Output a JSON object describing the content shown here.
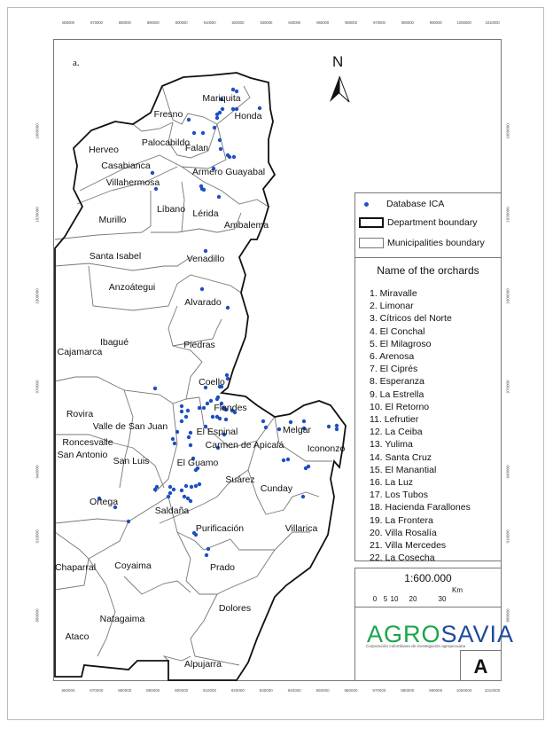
{
  "panel_label": "a.",
  "north_arrow": {
    "letter": "N"
  },
  "axes": {
    "easting_ticks": [
      "860000",
      "870000",
      "880000",
      "890000",
      "900000",
      "910000",
      "920000",
      "930000",
      "940000",
      "950000",
      "960000",
      "970000",
      "980000",
      "990000",
      "1000000",
      "1010000"
    ],
    "northing_ticks": [
      "1060000",
      "1030000",
      "1000000",
      "970000",
      "940000",
      "910000",
      "880000"
    ]
  },
  "legend": {
    "items": [
      {
        "label": "Database ICA",
        "symbol": "point",
        "color": "#1f4fc4"
      },
      {
        "label": "Department boundary",
        "symbol": "thick-box"
      },
      {
        "label": "Municipalities boundary",
        "symbol": "thin-box"
      }
    ]
  },
  "orchards": {
    "title": "Name of the orchards",
    "items": [
      "1. Miravalle",
      "2. Limonar",
      "3. Cítricos del Norte",
      "4. El Conchal",
      "5. El Milagroso",
      "6. Arenosa",
      "7. El Ciprés",
      "8. Esperanza",
      "9. La Estrella",
      "10. El Retorno",
      "11. Lefrutier",
      "12. La Ceiba",
      "13. Yulima",
      "14. Santa Cruz",
      "15. El Manantial",
      "16. La Luz",
      "17. Los Tubos",
      "18. Hacienda Farallones",
      "19. La Frontera",
      "20. Villa Rosalía",
      "21. Villa Mercedes",
      "22. La Cosecha"
    ]
  },
  "scale": {
    "ratio": "1:600.000",
    "unit": "Km",
    "labels": [
      "0",
      "5",
      "10",
      "20",
      "30"
    ]
  },
  "logo": {
    "part1": "AGRO",
    "part2": "SAVIA",
    "tagline": "Corporación colombiana de investigación agropecuaria"
  },
  "panel_letter": "A",
  "municipalities": [
    "Mariquita",
    "Fresno",
    "Honda",
    "Palocabildo",
    "Falan",
    "Herveo",
    "Casabianca",
    "Armero Guayabal",
    "Villahermosa",
    "Líbano",
    "Lérida",
    "Murillo",
    "Ambalema",
    "Santa Isabel",
    "Venadillo",
    "Anzoátegui",
    "Alvarado",
    "Ibagué",
    "Piedras",
    "Cajamarca",
    "Coello",
    "Rovira",
    "Flandes",
    "Valle de San Juan",
    "El Espinal",
    "Melgar",
    "Roncesvalle",
    "Carmen de Apicalá",
    "Icononzo",
    "San Antonio",
    "San Luis",
    "El Guamo",
    "Suárez",
    "Cunday",
    "Ortega",
    "Saldaña",
    "Purificación",
    "Villarica",
    "Chaparral",
    "Coyaima",
    "Prado",
    "Dolores",
    "Natagaima",
    "Ataco",
    "Alpujarra"
  ],
  "colors": {
    "points": "#1f4fc4",
    "department_line": "#111111",
    "municipality_line": "#777777",
    "logo_green": "#1aa44b",
    "logo_blue": "#1f4b9c"
  }
}
